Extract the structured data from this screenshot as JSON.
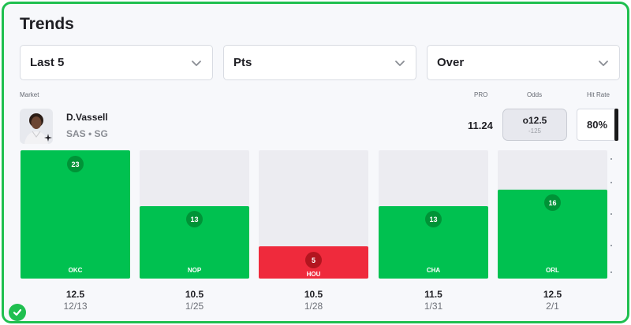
{
  "header": {
    "title": "Trends"
  },
  "filters": [
    {
      "label": "Last 5"
    },
    {
      "label": "Pts"
    },
    {
      "label": "Over"
    }
  ],
  "labels": {
    "market": "Market",
    "pro": "PRO",
    "odds": "Odds",
    "hit_rate": "Hit Rate"
  },
  "player": {
    "name": "D.Vassell",
    "meta": "SAS • SG",
    "pro_value": "11.24",
    "odds_line": "o12.5",
    "odds_price": "-125",
    "hit_rate": "80%"
  },
  "games": [
    {
      "team": "OKC",
      "points": "23",
      "line": "12.5",
      "date": "12/13",
      "result": "hit",
      "fill": 1.0
    },
    {
      "team": "NOP",
      "points": "13",
      "line": "10.5",
      "date": "1/25",
      "result": "hit",
      "fill": 0.565
    },
    {
      "team": "HOU",
      "points": "5",
      "line": "10.5",
      "date": "1/28",
      "result": "miss",
      "fill": 0.25
    },
    {
      "team": "CHA",
      "points": "13",
      "line": "11.5",
      "date": "1/31",
      "result": "hit",
      "fill": 0.565
    },
    {
      "team": "ORL",
      "points": "16",
      "line": "12.5",
      "date": "2/1",
      "result": "hit",
      "fill": 0.695
    }
  ],
  "colors": {
    "hit": "#00c150",
    "miss": "#ef2a3c",
    "border": "#1fbf4f"
  },
  "icons": {
    "dropdown": "chevron-down-icon",
    "status": "check-circle-icon",
    "team_logo": "spurs-logo-icon"
  }
}
